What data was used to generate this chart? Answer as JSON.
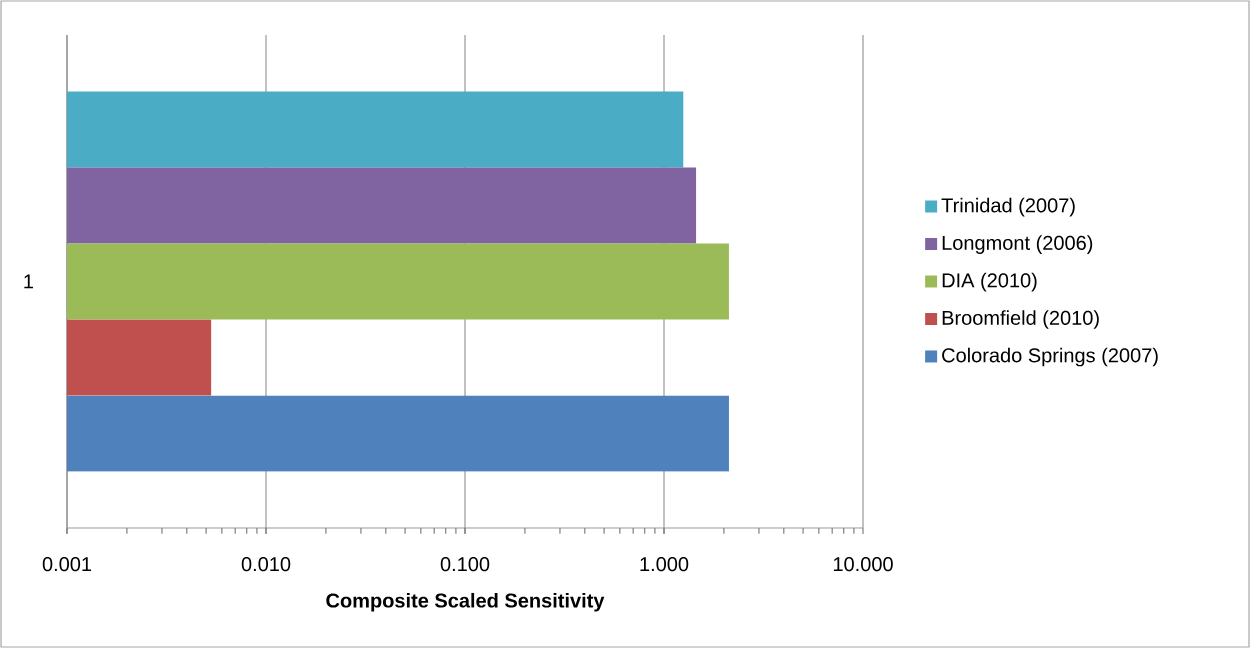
{
  "chart_data": {
    "type": "bar",
    "orientation": "horizontal",
    "categories": [
      "1"
    ],
    "xlabel": "Composite Scaled Sensitivity",
    "log": "x",
    "xlim": [
      0.001,
      10
    ],
    "xticks": [
      0.001,
      {
        "value": 0.01,
        "label": "0.010"
      },
      {
        "value": 0.1,
        "label": "0.100"
      },
      {
        "value": 1,
        "label": "1.000"
      },
      {
        "value": 10,
        "label": "10.000"
      }
    ],
    "grid": "x",
    "legend": "right",
    "series": [
      {
        "name": "Trinidad (2007)",
        "color": "#4bacc6",
        "values": [
          1.25
        ]
      },
      {
        "name": "Longmont (2006)",
        "color": "#8064a2",
        "values": [
          1.45
        ]
      },
      {
        "name": "DIA (2010)",
        "color": "#9bbb59",
        "values": [
          2.12
        ]
      },
      {
        "name": "Broomfield (2010)",
        "color": "#c0504d",
        "values": [
          0.0053
        ]
      },
      {
        "name": "Colorado Springs (2007)",
        "color": "#4f81bd",
        "values": [
          2.12
        ]
      }
    ]
  }
}
